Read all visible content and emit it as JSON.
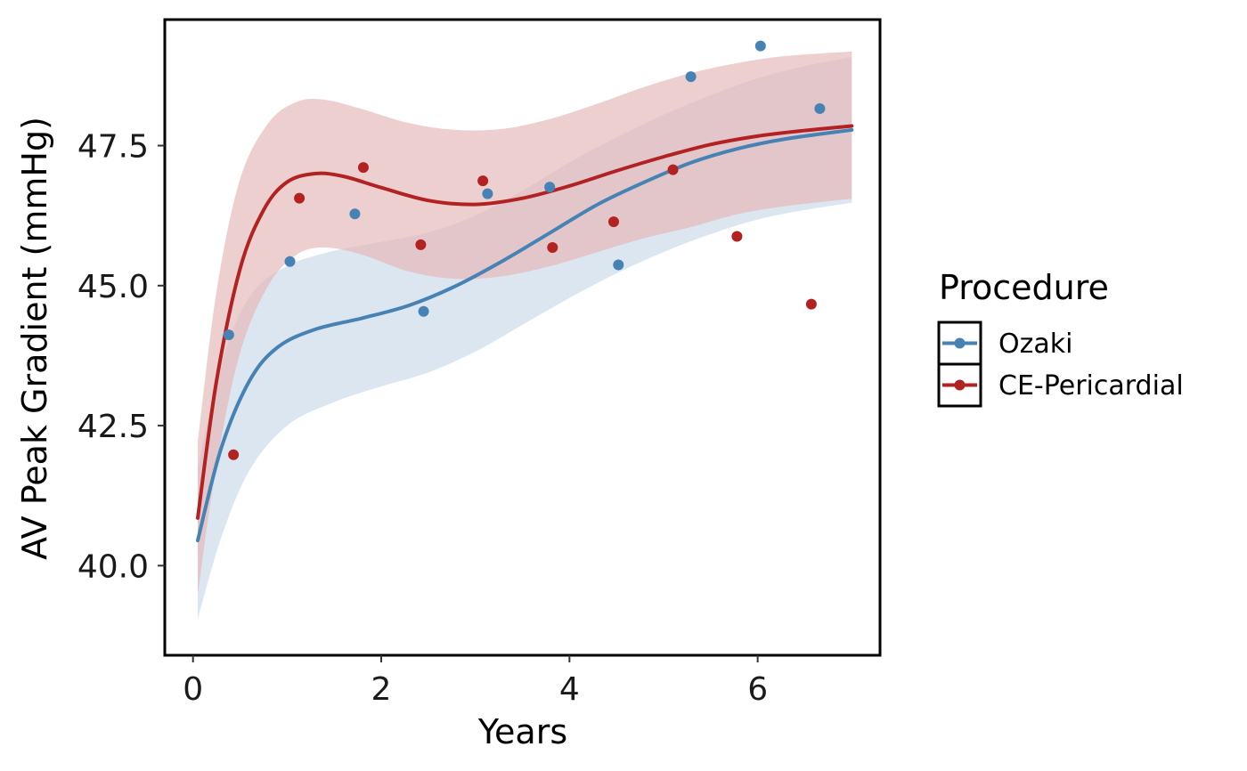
{
  "chart_data": {
    "type": "scatter",
    "xlabel": "Years",
    "ylabel": "AV Peak Gradient (mmHg)",
    "xlim": [
      -0.3,
      7.3
    ],
    "ylim": [
      38.4,
      49.75
    ],
    "x_ticks": [
      0,
      2,
      4,
      6
    ],
    "x_tick_labels": [
      "0",
      "2",
      "4",
      "6"
    ],
    "y_ticks": [
      40.0,
      42.5,
      45.0,
      47.5
    ],
    "y_tick_labels": [
      "40.0",
      "42.5",
      "45.0",
      "47.5"
    ],
    "grid": false,
    "legend": {
      "title": "Procedure",
      "placement": "right",
      "entries": [
        "Ozaki",
        "CE-Pericardial"
      ]
    },
    "series": [
      {
        "name": "Ozaki",
        "color": "#4682b4",
        "band_color": "#c9d9ea",
        "points": [
          {
            "x": 0.38,
            "y": 44.12
          },
          {
            "x": 1.03,
            "y": 45.43
          },
          {
            "x": 1.72,
            "y": 46.28
          },
          {
            "x": 2.45,
            "y": 44.54
          },
          {
            "x": 3.13,
            "y": 46.64
          },
          {
            "x": 3.79,
            "y": 46.76
          },
          {
            "x": 4.52,
            "y": 45.37
          },
          {
            "x": 5.29,
            "y": 48.73
          },
          {
            "x": 6.03,
            "y": 49.28
          },
          {
            "x": 6.66,
            "y": 48.16
          }
        ],
        "smooth": [
          {
            "x": 0.05,
            "y": 40.45
          },
          {
            "x": 0.3,
            "y": 42.1
          },
          {
            "x": 0.6,
            "y": 43.3
          },
          {
            "x": 0.9,
            "y": 43.9
          },
          {
            "x": 1.3,
            "y": 44.22
          },
          {
            "x": 1.8,
            "y": 44.42
          },
          {
            "x": 2.3,
            "y": 44.65
          },
          {
            "x": 2.8,
            "y": 45.0
          },
          {
            "x": 3.3,
            "y": 45.45
          },
          {
            "x": 3.8,
            "y": 45.95
          },
          {
            "x": 4.3,
            "y": 46.45
          },
          {
            "x": 4.8,
            "y": 46.85
          },
          {
            "x": 5.3,
            "y": 47.2
          },
          {
            "x": 5.8,
            "y": 47.45
          },
          {
            "x": 6.3,
            "y": 47.62
          },
          {
            "x": 7.0,
            "y": 47.78
          }
        ],
        "band_upper": [
          {
            "x": 0.05,
            "y": 41.75
          },
          {
            "x": 0.3,
            "y": 43.6
          },
          {
            "x": 0.6,
            "y": 44.8
          },
          {
            "x": 1.0,
            "y": 45.35
          },
          {
            "x": 1.5,
            "y": 45.62
          },
          {
            "x": 2.0,
            "y": 45.78
          },
          {
            "x": 2.5,
            "y": 45.95
          },
          {
            "x": 3.0,
            "y": 46.25
          },
          {
            "x": 3.5,
            "y": 46.7
          },
          {
            "x": 4.0,
            "y": 47.2
          },
          {
            "x": 4.5,
            "y": 47.65
          },
          {
            "x": 5.0,
            "y": 48.05
          },
          {
            "x": 5.5,
            "y": 48.4
          },
          {
            "x": 6.0,
            "y": 48.7
          },
          {
            "x": 6.5,
            "y": 48.92
          },
          {
            "x": 7.0,
            "y": 49.08
          }
        ],
        "band_lower": [
          {
            "x": 0.05,
            "y": 39.05
          },
          {
            "x": 0.3,
            "y": 40.5
          },
          {
            "x": 0.6,
            "y": 41.7
          },
          {
            "x": 1.0,
            "y": 42.5
          },
          {
            "x": 1.5,
            "y": 42.92
          },
          {
            "x": 2.0,
            "y": 43.2
          },
          {
            "x": 2.5,
            "y": 43.45
          },
          {
            "x": 3.0,
            "y": 43.82
          },
          {
            "x": 3.5,
            "y": 44.3
          },
          {
            "x": 4.0,
            "y": 44.78
          },
          {
            "x": 4.5,
            "y": 45.22
          },
          {
            "x": 5.0,
            "y": 45.6
          },
          {
            "x": 5.5,
            "y": 45.92
          },
          {
            "x": 6.0,
            "y": 46.18
          },
          {
            "x": 6.5,
            "y": 46.35
          },
          {
            "x": 7.0,
            "y": 46.48
          }
        ]
      },
      {
        "name": "CE-Pericardial",
        "color": "#b22222",
        "band_color": "#e5b5b5",
        "points": [
          {
            "x": 0.43,
            "y": 41.98
          },
          {
            "x": 1.13,
            "y": 46.56
          },
          {
            "x": 1.81,
            "y": 47.11
          },
          {
            "x": 2.42,
            "y": 45.73
          },
          {
            "x": 3.08,
            "y": 46.87
          },
          {
            "x": 3.82,
            "y": 45.68
          },
          {
            "x": 4.47,
            "y": 46.14
          },
          {
            "x": 5.1,
            "y": 47.07
          },
          {
            "x": 5.78,
            "y": 45.88
          },
          {
            "x": 6.57,
            "y": 44.67
          }
        ],
        "smooth": [
          {
            "x": 0.05,
            "y": 40.85
          },
          {
            "x": 0.25,
            "y": 43.3
          },
          {
            "x": 0.5,
            "y": 45.3
          },
          {
            "x": 0.75,
            "y": 46.35
          },
          {
            "x": 1.0,
            "y": 46.85
          },
          {
            "x": 1.3,
            "y": 47.0
          },
          {
            "x": 1.6,
            "y": 46.95
          },
          {
            "x": 2.0,
            "y": 46.75
          },
          {
            "x": 2.5,
            "y": 46.52
          },
          {
            "x": 3.0,
            "y": 46.45
          },
          {
            "x": 3.5,
            "y": 46.56
          },
          {
            "x": 4.0,
            "y": 46.78
          },
          {
            "x": 4.5,
            "y": 47.05
          },
          {
            "x": 5.0,
            "y": 47.3
          },
          {
            "x": 5.5,
            "y": 47.52
          },
          {
            "x": 6.0,
            "y": 47.67
          },
          {
            "x": 6.5,
            "y": 47.77
          },
          {
            "x": 7.0,
            "y": 47.85
          }
        ],
        "band_upper": [
          {
            "x": 0.05,
            "y": 42.2
          },
          {
            "x": 0.25,
            "y": 44.9
          },
          {
            "x": 0.5,
            "y": 46.9
          },
          {
            "x": 0.8,
            "y": 47.9
          },
          {
            "x": 1.1,
            "y": 48.28
          },
          {
            "x": 1.4,
            "y": 48.32
          },
          {
            "x": 1.8,
            "y": 48.15
          },
          {
            "x": 2.3,
            "y": 47.9
          },
          {
            "x": 2.8,
            "y": 47.78
          },
          {
            "x": 3.3,
            "y": 47.8
          },
          {
            "x": 3.8,
            "y": 47.98
          },
          {
            "x": 4.3,
            "y": 48.25
          },
          {
            "x": 4.8,
            "y": 48.55
          },
          {
            "x": 5.3,
            "y": 48.8
          },
          {
            "x": 5.8,
            "y": 48.98
          },
          {
            "x": 6.3,
            "y": 49.1
          },
          {
            "x": 7.0,
            "y": 49.18
          }
        ],
        "band_lower": [
          {
            "x": 0.05,
            "y": 39.5
          },
          {
            "x": 0.25,
            "y": 41.8
          },
          {
            "x": 0.5,
            "y": 43.8
          },
          {
            "x": 0.8,
            "y": 45.0
          },
          {
            "x": 1.1,
            "y": 45.55
          },
          {
            "x": 1.4,
            "y": 45.68
          },
          {
            "x": 1.8,
            "y": 45.55
          },
          {
            "x": 2.3,
            "y": 45.25
          },
          {
            "x": 2.8,
            "y": 45.12
          },
          {
            "x": 3.3,
            "y": 45.17
          },
          {
            "x": 3.8,
            "y": 45.35
          },
          {
            "x": 4.3,
            "y": 45.6
          },
          {
            "x": 4.8,
            "y": 45.85
          },
          {
            "x": 5.3,
            "y": 46.05
          },
          {
            "x": 5.8,
            "y": 46.28
          },
          {
            "x": 6.3,
            "y": 46.42
          },
          {
            "x": 7.0,
            "y": 46.55
          }
        ]
      }
    ]
  }
}
